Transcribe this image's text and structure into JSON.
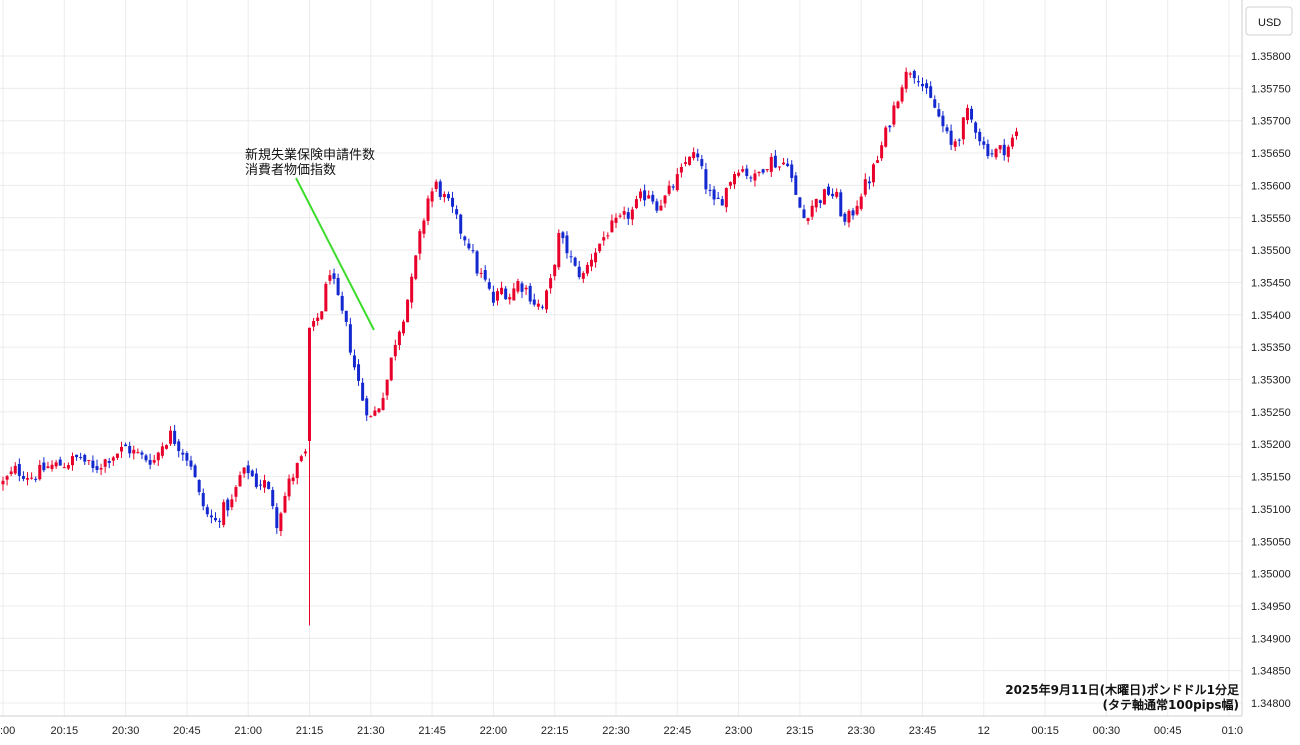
{
  "chart_data": {
    "type": "candlestick",
    "currency_label": "USD",
    "caption_line1": "2025年9月11日(木曜日)ポンドドル1分足",
    "caption_line2": "(タテ軸通常100pips幅)",
    "annotation": [
      "新規失業保険申請件数",
      "消費者物価指数"
    ],
    "y_ticks": [
      "1.35800",
      "1.35750",
      "1.35700",
      "1.35650",
      "1.35600",
      "1.35550",
      "1.35500",
      "1.35450",
      "1.35400",
      "1.35350",
      "1.35300",
      "1.35250",
      "1.35200",
      "1.35150",
      "1.35100",
      "1.35050",
      "1.35000",
      "1.34950",
      "1.34900",
      "1.34850",
      "1.34800"
    ],
    "x_ticks": [
      ":00",
      "20:15",
      "20:30",
      "20:45",
      "21:00",
      "21:15",
      "21:30",
      "21:45",
      "22:00",
      "22:15",
      "22:30",
      "22:45",
      "23:00",
      "23:15",
      "23:30",
      "23:45",
      "12",
      "00:15",
      "00:30",
      "00:45",
      "01:0"
    ],
    "ylim": [
      1.34785,
      1.35845
    ],
    "up_color": "#e8002a",
    "down_color": "#1428d0",
    "annotation_line_color": "#3ddc2c",
    "close_path": [
      [
        0,
        1.3514
      ],
      [
        3,
        1.3516
      ],
      [
        7,
        1.3515
      ],
      [
        11,
        1.35165
      ],
      [
        15,
        1.3517
      ],
      [
        19,
        1.3518
      ],
      [
        22,
        1.3516
      ],
      [
        26,
        1.3518
      ],
      [
        30,
        1.35195
      ],
      [
        34,
        1.3518
      ],
      [
        37,
        1.35175
      ],
      [
        39,
        1.352
      ],
      [
        41,
        1.35215
      ],
      [
        44,
        1.3519
      ],
      [
        46,
        1.3517
      ],
      [
        48,
        1.3512
      ],
      [
        50,
        1.3509
      ],
      [
        52,
        1.3508
      ],
      [
        54,
        1.351
      ],
      [
        56,
        1.3511
      ],
      [
        58,
        1.3515
      ],
      [
        60,
        1.3516
      ],
      [
        62,
        1.3514
      ],
      [
        64,
        1.3514
      ],
      [
        66,
        1.3511
      ],
      [
        67,
        1.3508
      ],
      [
        68,
        1.351
      ],
      [
        70,
        1.3514
      ],
      [
        72,
        1.35165
      ],
      [
        74,
        1.35185
      ],
      [
        75,
        1.35205
      ],
      [
        76,
        1.3538
      ],
      [
        78,
        1.3541
      ],
      [
        80,
        1.3547
      ],
      [
        82,
        1.3542
      ],
      [
        84,
        1.3538
      ],
      [
        86,
        1.3532
      ],
      [
        88,
        1.3527
      ],
      [
        90,
        1.3524
      ],
      [
        92,
        1.3526
      ],
      [
        94,
        1.353
      ],
      [
        96,
        1.3536
      ],
      [
        98,
        1.354
      ],
      [
        100,
        1.3545
      ],
      [
        102,
        1.3552
      ],
      [
        104,
        1.3558
      ],
      [
        106,
        1.356
      ],
      [
        108,
        1.3558
      ],
      [
        110,
        1.3556
      ],
      [
        112,
        1.3553
      ],
      [
        114,
        1.3551
      ],
      [
        116,
        1.3547
      ],
      [
        118,
        1.3545
      ],
      [
        120,
        1.3542
      ],
      [
        122,
        1.3544
      ],
      [
        124,
        1.3543
      ],
      [
        126,
        1.3545
      ],
      [
        128,
        1.3544
      ],
      [
        130,
        1.3542
      ],
      [
        132,
        1.3541
      ],
      [
        134,
        1.3545
      ],
      [
        136,
        1.3552
      ],
      [
        138,
        1.355
      ],
      [
        140,
        1.3547
      ],
      [
        142,
        1.3546
      ],
      [
        144,
        1.3549
      ],
      [
        146,
        1.3551
      ],
      [
        148,
        1.3553
      ],
      [
        150,
        1.3554
      ],
      [
        152,
        1.3555
      ],
      [
        154,
        1.3556
      ],
      [
        156,
        1.3558
      ],
      [
        158,
        1.3559
      ],
      [
        160,
        1.3557
      ],
      [
        162,
        1.3558
      ],
      [
        164,
        1.356
      ],
      [
        166,
        1.3562
      ],
      [
        168,
        1.3565
      ],
      [
        170,
        1.3564
      ],
      [
        172,
        1.356
      ],
      [
        174,
        1.3557
      ],
      [
        176,
        1.3558
      ],
      [
        178,
        1.3561
      ],
      [
        180,
        1.3563
      ],
      [
        182,
        1.3562
      ],
      [
        184,
        1.3561
      ],
      [
        186,
        1.3563
      ],
      [
        188,
        1.3564
      ],
      [
        190,
        1.3563
      ],
      [
        192,
        1.3564
      ],
      [
        194,
        1.3558
      ],
      [
        196,
        1.3555
      ],
      [
        198,
        1.3557
      ],
      [
        200,
        1.3558
      ],
      [
        202,
        1.3559
      ],
      [
        204,
        1.3558
      ],
      [
        206,
        1.3554
      ],
      [
        208,
        1.3556
      ],
      [
        210,
        1.3559
      ],
      [
        212,
        1.3561
      ],
      [
        214,
        1.3564
      ],
      [
        216,
        1.3568
      ],
      [
        218,
        1.3572
      ],
      [
        220,
        1.3576
      ],
      [
        222,
        1.3578
      ],
      [
        224,
        1.3577
      ],
      [
        226,
        1.3574
      ],
      [
        228,
        1.3572
      ],
      [
        230,
        1.3569
      ],
      [
        232,
        1.3566
      ],
      [
        234,
        1.3568
      ],
      [
        236,
        1.3571
      ],
      [
        238,
        1.3569
      ],
      [
        240,
        1.3566
      ],
      [
        242,
        1.3565
      ],
      [
        244,
        1.35655
      ],
      [
        246,
        1.3566
      ],
      [
        248,
        1.3568
      ]
    ],
    "spike_candle": {
      "minute": 75,
      "open": 1.35205,
      "high": 1.3538,
      "low": 1.3492,
      "close": 1.3538
    }
  }
}
